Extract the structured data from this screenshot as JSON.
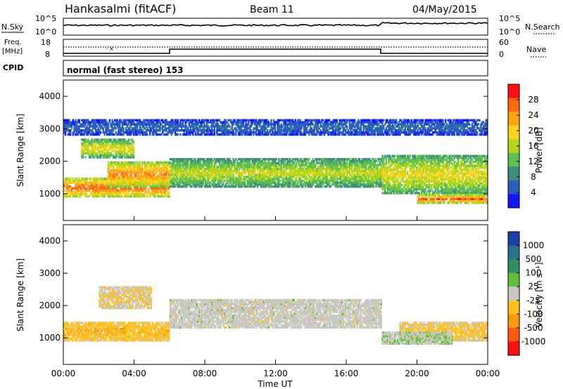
{
  "header": {
    "radar": "Hankasalmi (fitACF)",
    "beam": "Beam 11",
    "date": "04/May/2015"
  },
  "nsky_panel": {
    "left_label": "N.Sky",
    "left_ticks": [
      "10^5",
      "10^0"
    ],
    "right_label": "N.Search",
    "right_ticks": [
      "10^5",
      "10^0"
    ]
  },
  "freq_panel": {
    "left_label_line1": "Freq.",
    "left_label_line2": "[MHz]",
    "left_ticks": [
      "18",
      "8"
    ],
    "right_label": "Nave",
    "right_ticks": [
      "60",
      "0"
    ]
  },
  "cpid": {
    "label": "CPID",
    "value": "normal (fast stereo) 153"
  },
  "power_panel": {
    "ylabel": "Slant Range [km]",
    "yticks": [
      "4000",
      "3000",
      "2000",
      "1000"
    ],
    "colorbar_label": "Power [dB]",
    "colorbar_ticks": [
      "28",
      "24",
      "20",
      "16",
      "12",
      "8",
      "4"
    ],
    "colors": [
      "#1515ff",
      "#2a5fbf",
      "#3f8f7f",
      "#5fbf50",
      "#b5d61a",
      "#ffd21e",
      "#ffa314",
      "#ff6a10",
      "#ff1010"
    ]
  },
  "velocity_panel": {
    "ylabel": "Slant Range [km]",
    "yticks": [
      "4000",
      "3000",
      "2000",
      "1000"
    ],
    "colorbar_label": "Velocity [m s⁻¹]",
    "colorbar_ticks": [
      "1000",
      "500",
      "100",
      "25",
      "-25",
      "-100",
      "-500",
      "-1000"
    ],
    "colors": [
      "#1a3fa8",
      "#2c6f8f",
      "#2f8f5f",
      "#5fbf3a",
      "#c8c8c0",
      "#ffc020",
      "#ff9a10",
      "#ff5a10",
      "#ff1010"
    ]
  },
  "time_axis": {
    "ticks": [
      "00:00",
      "04:00",
      "08:00",
      "12:00",
      "16:00",
      "20:00",
      "00:00"
    ],
    "label": "Time UT"
  },
  "chart_data": {
    "type": "heatmap",
    "title": "Hankasalmi (fitACF) Beam 11 04/May/2015",
    "xlabel": "Time UT",
    "ylabel": "Slant Range [km]",
    "xlim": [
      "00:00",
      "24:00"
    ],
    "ylim": [
      180,
      4500
    ],
    "cpid": "normal (fast stereo) 153",
    "panels": [
      {
        "name": "Power",
        "units": "dB",
        "color_range": [
          0,
          30
        ],
        "bands": [
          {
            "t": [
              0,
              6
            ],
            "r": [
              900,
              1500
            ],
            "value": 26
          },
          {
            "t": [
              2.5,
              6
            ],
            "r": [
              1200,
              2000
            ],
            "value": 24
          },
          {
            "t": [
              6,
              18
            ],
            "r": [
              1200,
              2100
            ],
            "value": 16
          },
          {
            "t": [
              1,
              4
            ],
            "r": [
              2100,
              2700
            ],
            "value": 18
          },
          {
            "t": [
              18,
              24
            ],
            "r": [
              1000,
              2200
            ],
            "value": 18
          },
          {
            "t": [
              20,
              24
            ],
            "r": [
              700,
              1000
            ],
            "value": 26
          },
          {
            "t": [
              0,
              24
            ],
            "r": [
              2800,
              3300
            ],
            "value": 6
          }
        ]
      },
      {
        "name": "Velocity",
        "units": "m s-1",
        "color_range": [
          -1000,
          1000
        ],
        "bands": [
          {
            "t": [
              0,
              6
            ],
            "r": [
              900,
              1500
            ],
            "value": -300
          },
          {
            "t": [
              6,
              18
            ],
            "r": [
              1300,
              2200
            ],
            "value": 0
          },
          {
            "t": [
              2,
              5
            ],
            "r": [
              1900,
              2600
            ],
            "value": -150
          },
          {
            "t": [
              19,
              24
            ],
            "r": [
              900,
              1500
            ],
            "value": -200
          },
          {
            "t": [
              18,
              22
            ],
            "r": [
              800,
              1200
            ],
            "value": 80
          }
        ]
      }
    ],
    "nsky_level": "~10^3",
    "freq_step_times": [
      "06:00",
      "18:00"
    ]
  }
}
